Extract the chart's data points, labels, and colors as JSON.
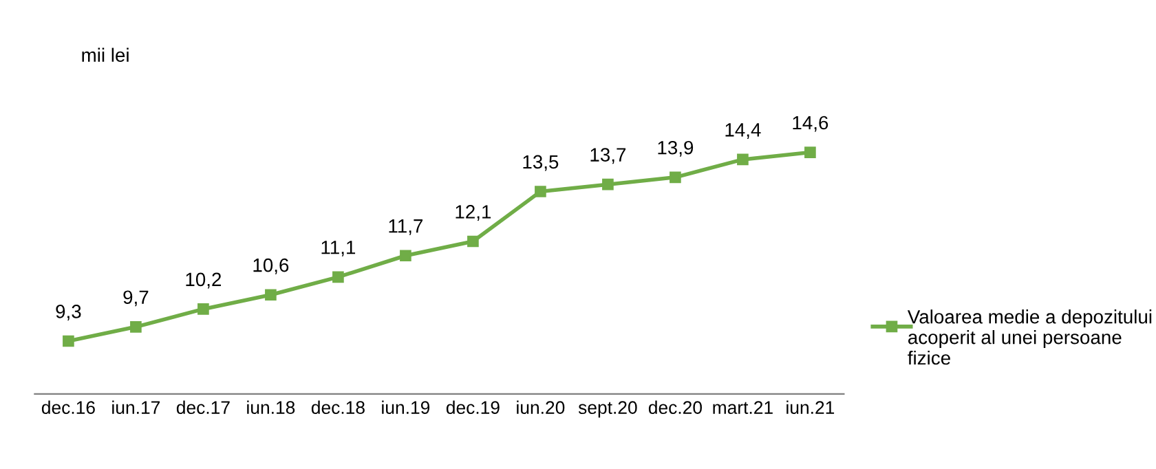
{
  "chart_data": {
    "type": "line",
    "ylabel": "mii lei",
    "categories": [
      "dec.16",
      "iun.17",
      "dec.17",
      "iun.18",
      "dec.18",
      "iun.19",
      "dec.19",
      "iun.20",
      "sept.20",
      "dec.20",
      "mart.21",
      "iun.21"
    ],
    "series": [
      {
        "name": "Valoarea medie a depozitului acoperit al unei persoane fizice",
        "color": "#70ad47",
        "values": [
          9.3,
          9.7,
          10.2,
          10.6,
          11.1,
          11.7,
          12.1,
          13.5,
          13.7,
          13.9,
          14.4,
          14.6
        ],
        "value_labels": [
          "9,3",
          "9,7",
          "10,2",
          "10,6",
          "11,1",
          "11,7",
          "12,1",
          "13,5",
          "13,7",
          "13,9",
          "14,4",
          "14,6"
        ]
      }
    ],
    "marker": "square",
    "line_style": "solid",
    "legend": "right",
    "grid": false,
    "tick_labels": "x"
  }
}
